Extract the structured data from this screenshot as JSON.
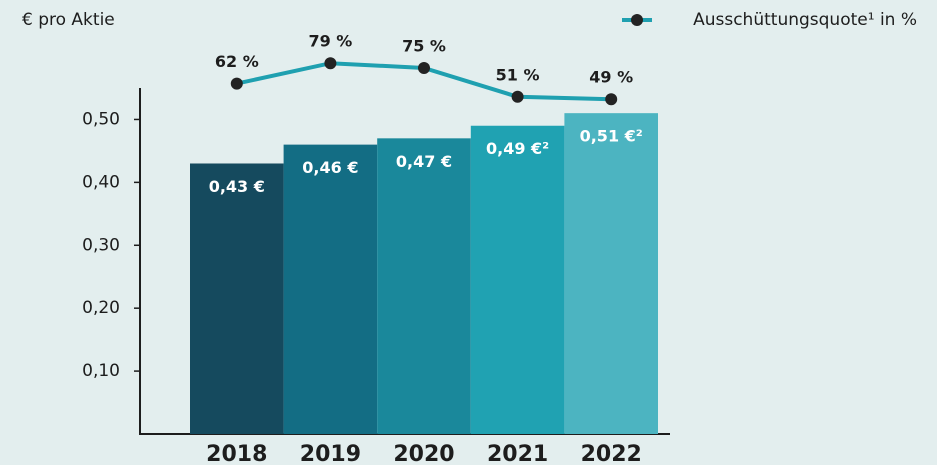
{
  "chart_data": {
    "type": "bar",
    "y_label": "€ pro Aktie",
    "categories": [
      "2018",
      "2019",
      "2020",
      "2021",
      "2022"
    ],
    "ylim": [
      0,
      0.55
    ],
    "yticks": [
      {
        "value": 0.1,
        "label": "0,10"
      },
      {
        "value": 0.2,
        "label": "0,20"
      },
      {
        "value": 0.3,
        "label": "0,30"
      },
      {
        "value": 0.4,
        "label": "0,40"
      },
      {
        "value": 0.5,
        "label": "0,50"
      }
    ],
    "y2lim": [
      40,
      90
    ],
    "series": [
      {
        "type": "bar",
        "colors": [
          "#154a5e",
          "#136d84",
          "#1a889b",
          "#20a2b2",
          "#4cb4c1"
        ],
        "values": [
          0.43,
          0.46,
          0.47,
          0.49,
          0.51
        ],
        "value_labels": [
          "0,43 €",
          "0,46 €",
          "0,47 €",
          "0,49 €²",
          "0,51 €²"
        ]
      },
      {
        "type": "line",
        "name": "Ausschüttungsquote¹ in %",
        "color": "#1fa0b0",
        "marker_color": "#232323",
        "axis": "y2",
        "values": [
          62,
          79,
          75,
          51,
          49
        ],
        "value_labels": [
          "62 %",
          "79 %",
          "75 %",
          "51 %",
          "49 %"
        ]
      }
    ]
  }
}
